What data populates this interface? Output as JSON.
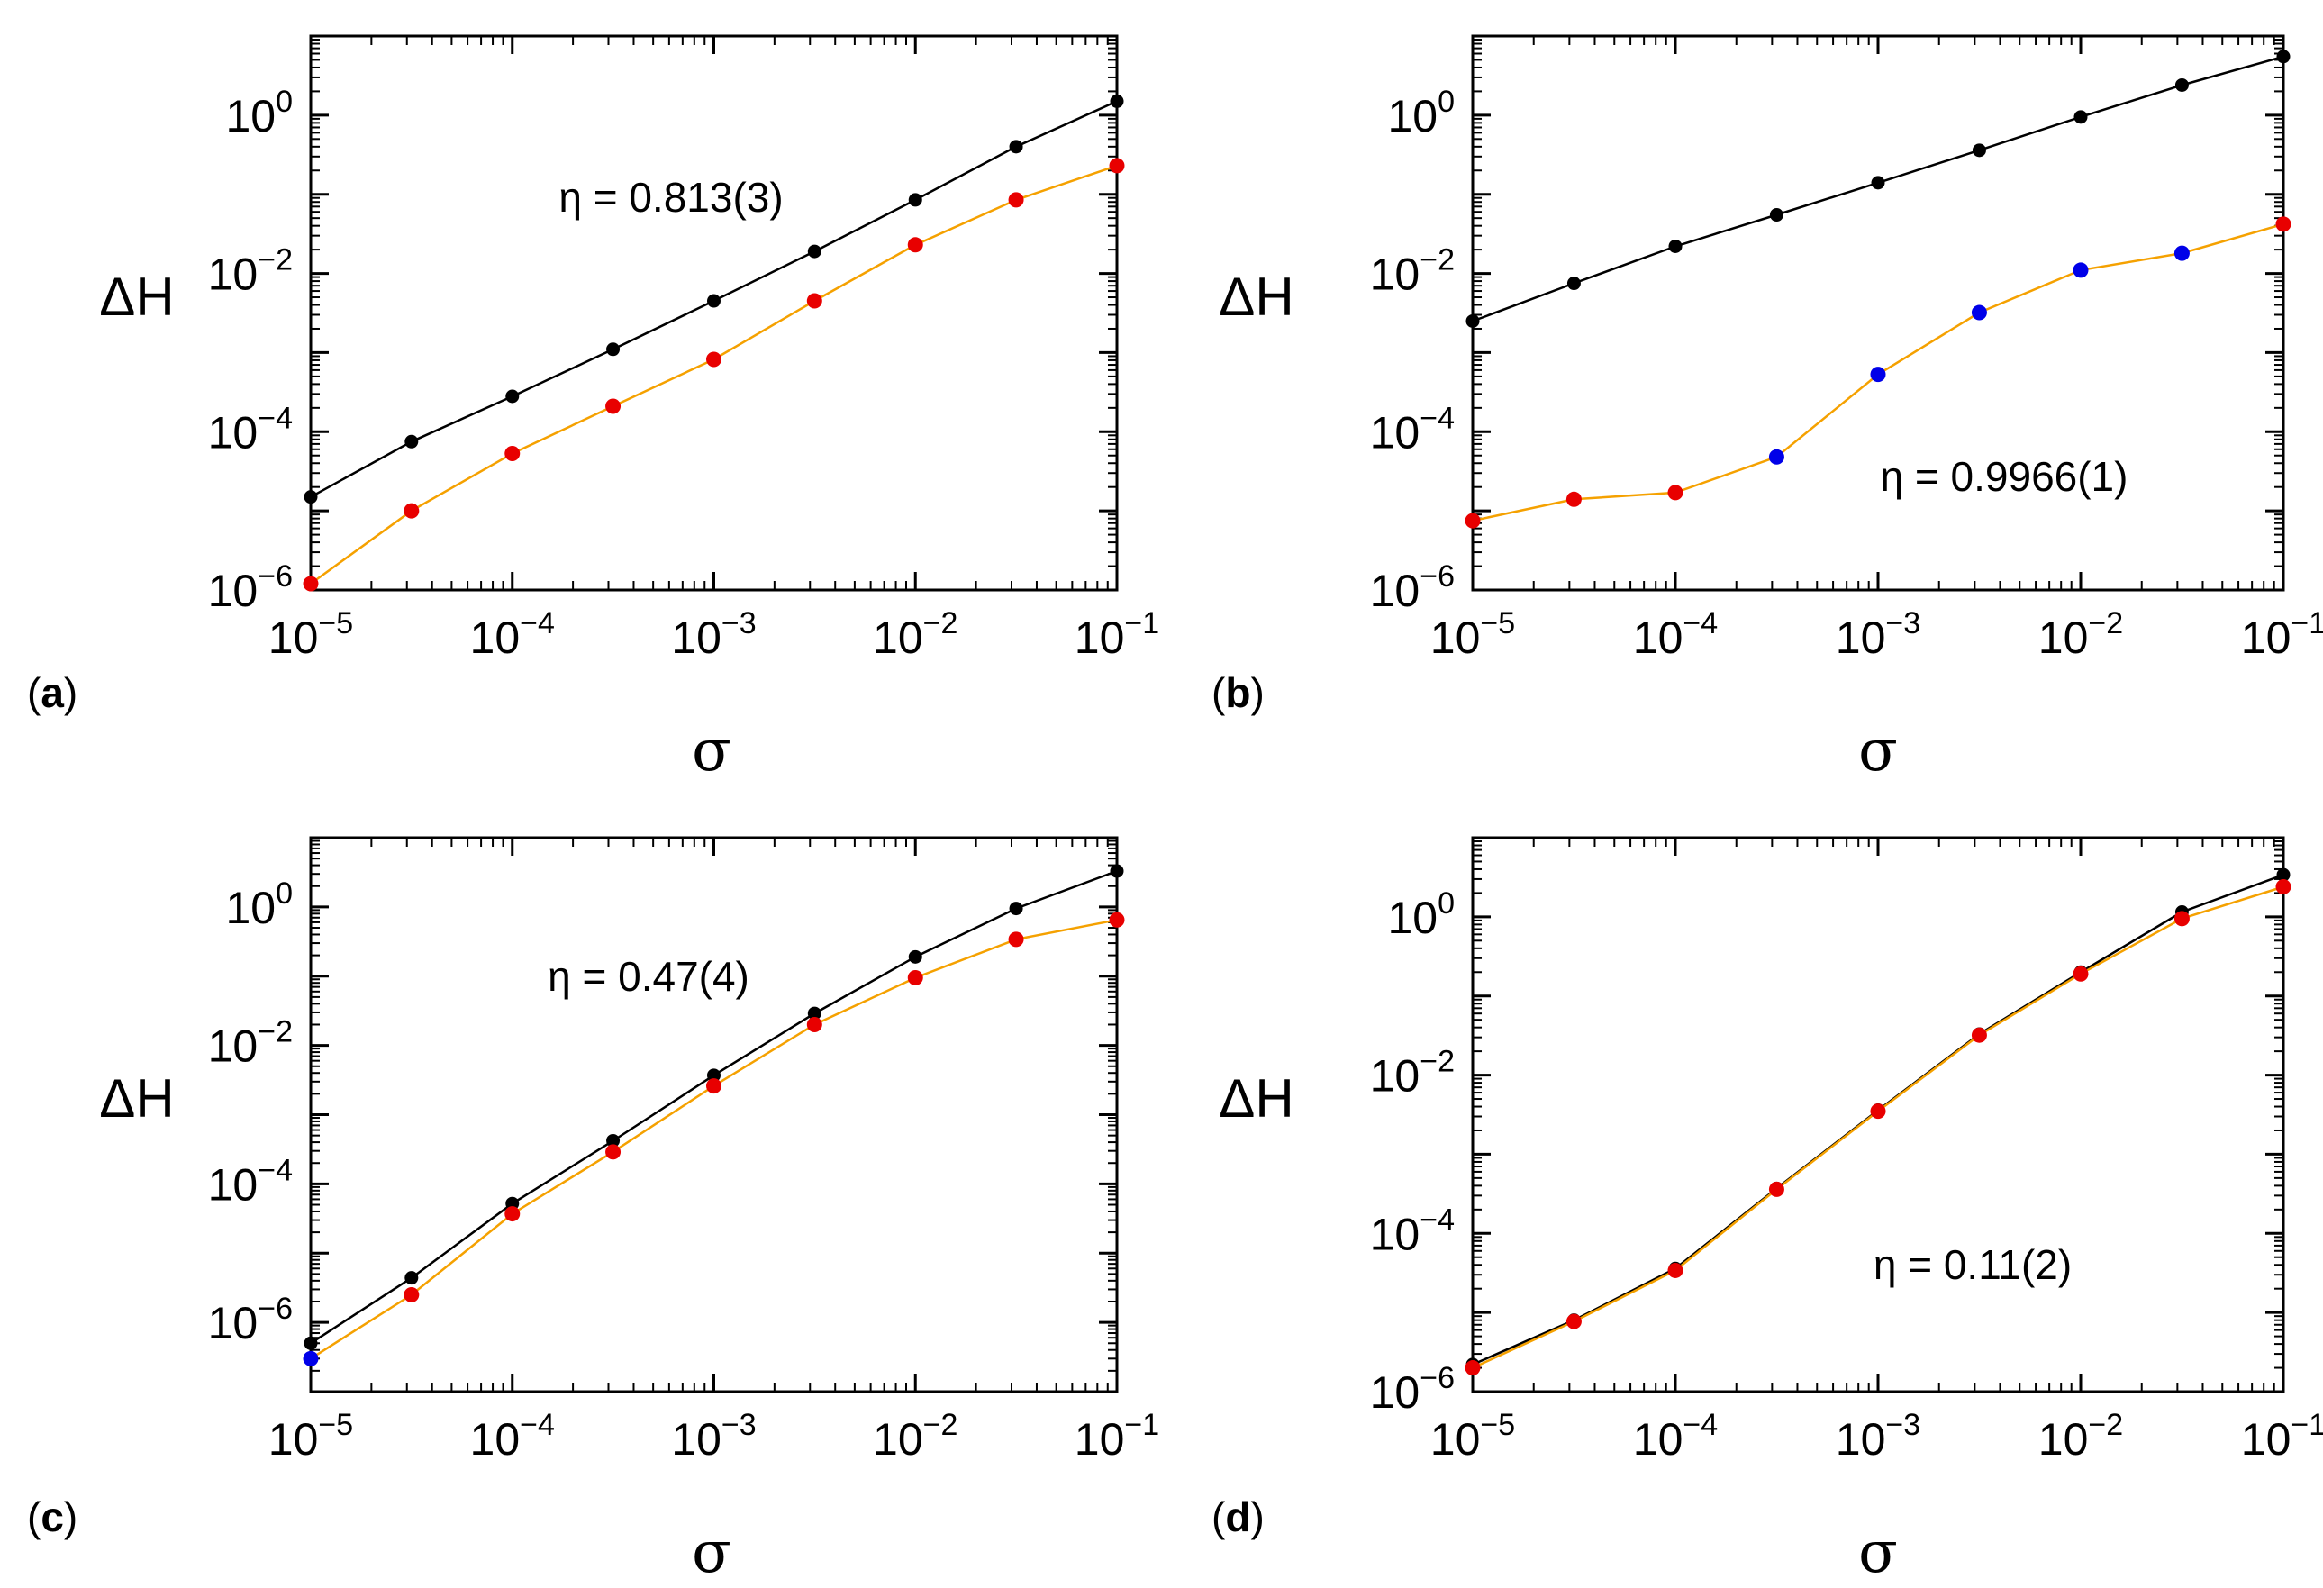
{
  "figure": {
    "colors": {
      "upper_series": "#000000",
      "lower_line": "#f5a100",
      "red_marker": "#e80000",
      "blue_marker": "#0000e8"
    }
  },
  "chart_data": [
    {
      "type": "line",
      "panel_label": "(a)",
      "panel_letter": "a",
      "xlabel": "σ",
      "ylabel": "ΔH",
      "xscale": "log",
      "yscale": "log",
      "xlim": [
        1e-05,
        0.1
      ],
      "ylim": [
        1e-06,
        10
      ],
      "x_ticks": [
        "10−5",
        "10−4",
        "10−3",
        "10−2",
        "10−1"
      ],
      "y_ticks": [
        "10−6",
        "10−4",
        "10−2",
        "100"
      ],
      "annotation": "η = 0.813(3)",
      "annotation_pos": "upper-middle",
      "x": [
        1e-05,
        3.16e-05,
        0.0001,
        0.000316,
        0.001,
        0.00316,
        0.01,
        0.0316,
        0.1
      ],
      "series": [
        {
          "name": "upper",
          "line": "black",
          "values": [
            1.5e-05,
            7.5e-05,
            0.00028,
            0.0011,
            0.0045,
            0.019,
            0.085,
            0.4,
            1.5
          ],
          "markers": [
            "black",
            "black",
            "black",
            "black",
            "black",
            "black",
            "black",
            "black",
            "black"
          ]
        },
        {
          "name": "lower",
          "line": "orange",
          "values": [
            1.2e-06,
            1e-05,
            5.3e-05,
            0.00021,
            0.00082,
            0.0045,
            0.023,
            0.085,
            0.23
          ],
          "markers": [
            "red",
            "red",
            "red",
            "red",
            "red",
            "red",
            "red",
            "red",
            "red"
          ]
        }
      ]
    },
    {
      "type": "line",
      "panel_label": "(b)",
      "panel_letter": "b",
      "xlabel": "σ",
      "ylabel": "ΔH",
      "xscale": "log",
      "yscale": "log",
      "xlim": [
        1e-05,
        0.1
      ],
      "ylim": [
        1e-06,
        10
      ],
      "x_ticks": [
        "10−5",
        "10−4",
        "10−3",
        "10−2",
        "10−1"
      ],
      "y_ticks": [
        "10−6",
        "10−4",
        "10−2",
        "100"
      ],
      "annotation": "η = 0.9966(1)",
      "annotation_pos": "lower-right",
      "x": [
        1e-05,
        3.16e-05,
        0.0001,
        0.000316,
        0.001,
        0.00316,
        0.01,
        0.0316,
        0.1
      ],
      "series": [
        {
          "name": "upper",
          "line": "black",
          "values": [
            0.0025,
            0.0075,
            0.022,
            0.055,
            0.14,
            0.36,
            0.95,
            2.4,
            5.5
          ],
          "markers": [
            "black",
            "black",
            "black",
            "black",
            "black",
            "black",
            "black",
            "black",
            "black"
          ]
        },
        {
          "name": "lower",
          "line": "orange",
          "values": [
            7.5e-06,
            1.4e-05,
            1.7e-05,
            4.8e-05,
            0.00053,
            0.0032,
            0.011,
            0.018,
            0.042
          ],
          "markers": [
            "red",
            "red",
            "red",
            "blue",
            "blue",
            "blue",
            "blue",
            "blue",
            "red"
          ]
        }
      ]
    },
    {
      "type": "line",
      "panel_label": "(c)",
      "panel_letter": "c",
      "xlabel": "σ",
      "ylabel": "ΔH",
      "xscale": "log",
      "yscale": "log",
      "xlim": [
        1e-05,
        0.1
      ],
      "ylim": [
        1e-07,
        10
      ],
      "x_ticks": [
        "10−5",
        "10−4",
        "10−3",
        "10−2",
        "10−1"
      ],
      "y_ticks": [
        "10−6",
        "10−4",
        "10−2",
        "100"
      ],
      "annotation": "η = 0.47(4)",
      "annotation_pos": "upper-middle",
      "x": [
        1e-05,
        3.16e-05,
        0.0001,
        0.000316,
        0.001,
        0.00316,
        0.01,
        0.0316,
        0.1
      ],
      "series": [
        {
          "name": "upper",
          "line": "black",
          "values": [
            5e-07,
            4.4e-06,
            5.2e-05,
            0.00042,
            0.0037,
            0.029,
            0.19,
            0.95,
            3.3
          ],
          "markers": [
            "black",
            "black",
            "black",
            "black",
            "black",
            "black",
            "black",
            "black",
            "black"
          ]
        },
        {
          "name": "lower",
          "line": "orange",
          "values": [
            3e-07,
            2.5e-06,
            3.7e-05,
            0.00029,
            0.0026,
            0.02,
            0.095,
            0.34,
            0.65
          ],
          "markers": [
            "blue",
            "red",
            "red",
            "red",
            "red",
            "red",
            "red",
            "red",
            "red"
          ]
        }
      ]
    },
    {
      "type": "line",
      "panel_label": "(d)",
      "panel_letter": "d",
      "xlabel": "σ",
      "ylabel": "ΔH",
      "xscale": "log",
      "yscale": "log",
      "xlim": [
        1e-05,
        0.1
      ],
      "ylim": [
        1e-06,
        10
      ],
      "x_ticks": [
        "10−5",
        "10−4",
        "10−3",
        "10−2",
        "10−1"
      ],
      "y_ticks": [
        "10−6",
        "10−4",
        "10−2",
        "100"
      ],
      "annotation": "η = 0.11(2)",
      "annotation_pos": "lower-right",
      "x": [
        1e-05,
        3.16e-05,
        0.0001,
        0.000316,
        0.001,
        0.00316,
        0.01,
        0.0316,
        0.1
      ],
      "series": [
        {
          "name": "upper",
          "line": "black",
          "values": [
            2.2e-06,
            8e-06,
            3.6e-05,
            0.00037,
            0.0036,
            0.033,
            0.2,
            1.15,
            3.4
          ],
          "markers": [
            "black",
            "black",
            "black",
            "black",
            "black",
            "black",
            "black",
            "black",
            "black"
          ]
        },
        {
          "name": "lower",
          "line": "orange",
          "values": [
            2e-06,
            7.7e-06,
            3.4e-05,
            0.00036,
            0.0035,
            0.032,
            0.19,
            0.95,
            2.4
          ],
          "markers": [
            "red",
            "red",
            "red",
            "red",
            "red",
            "red",
            "red",
            "red",
            "red"
          ]
        }
      ]
    }
  ]
}
